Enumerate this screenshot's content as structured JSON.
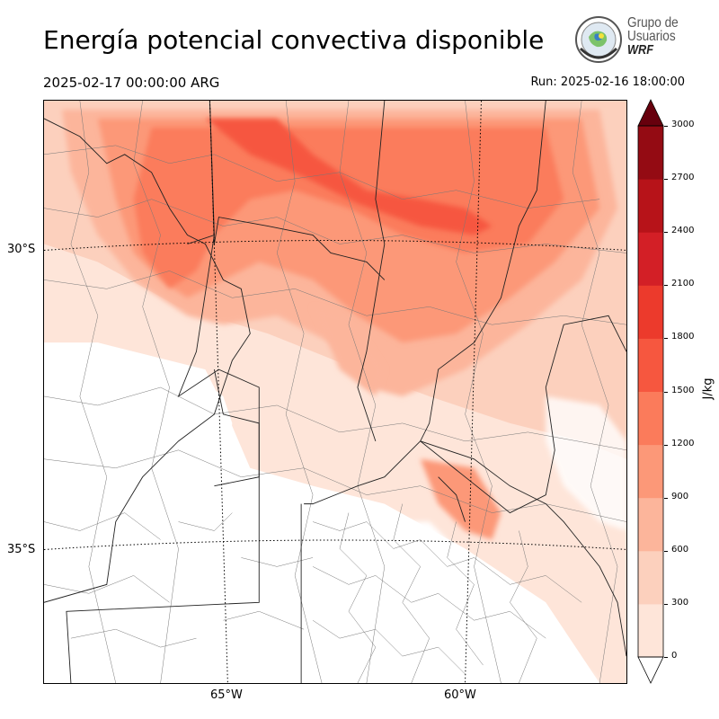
{
  "header": {
    "title": "Energía potencial convectiva disponible",
    "valid_time": "2025-02-17 00:00:00 ARG",
    "run_time": "Run: 2025-02-16 18:00:00"
  },
  "logo": {
    "line1": "Grupo de",
    "line2": "Usuarios",
    "line3": "WRF",
    "icon": "globe-seal-icon"
  },
  "map": {
    "lat_labels": [
      "30°S",
      "35°S"
    ],
    "lon_labels": [
      "65°W",
      "60°W"
    ]
  },
  "colorbar": {
    "label": "J/kg",
    "ticks": [
      "0",
      "300",
      "600",
      "900",
      "1200",
      "1500",
      "1800",
      "2100",
      "2400",
      "2700",
      "3000"
    ],
    "colors": [
      "#fee5d9",
      "#fcd0bd",
      "#fcb59b",
      "#fc9878",
      "#fb7b5b",
      "#f6573f",
      "#ec3a2c",
      "#d31f26",
      "#b71319",
      "#940b13",
      "#6e0410"
    ],
    "extend": "both",
    "under_color": "#ffffff",
    "over_color": "#67000d"
  }
}
